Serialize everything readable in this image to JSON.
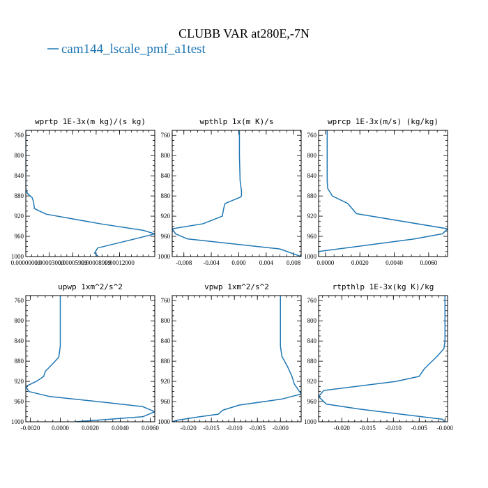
{
  "figure": {
    "title": "CLUBB VAR at280E,-7N",
    "legend": [
      {
        "label": "cam144_lscale_pmf_a1test",
        "color": "#1f77b4"
      }
    ]
  },
  "chart_data": [
    {
      "type": "line",
      "title": "wprtp  1E-3x(m kg)/(s kg)",
      "ylim": [
        1000,
        750
      ],
      "yticks": [
        760,
        800,
        840,
        880,
        920,
        960,
        1000
      ],
      "xlim": [
        0,
        0.000165
      ],
      "xticks": [
        0,
        3e-05,
        6e-05,
        9e-05,
        0.00012
      ],
      "xticklabels": [
        "0.00000000",
        "0.00003000",
        "0.00005999",
        "0.00008999",
        "0.00012000"
      ],
      "series": [
        {
          "color": "#1f77b4",
          "x": [
            0,
            0,
            0,
            2e-06,
            8e-06,
            1e-05,
            1.1e-05,
            2.6e-05,
            9.5e-05,
            0.00015,
            0.000165,
            0.000145,
            9.2e-05,
            8.8e-05,
            9.3e-05
          ],
          "y": [
            750,
            830,
            865,
            875,
            883,
            892,
            905,
            916,
            935,
            948,
            955,
            963,
            983,
            993,
            1000
          ]
        }
      ]
    },
    {
      "type": "line",
      "title": "wpthlp  1x(m K)/s",
      "ylim": [
        1000,
        750
      ],
      "yticks": [
        760,
        800,
        840,
        880,
        920,
        960,
        1000
      ],
      "xlim": [
        -0.0097,
        0.0091
      ],
      "xticks": [
        -0.008,
        -0.004,
        0,
        0.004,
        0.008
      ],
      "xticklabels": [
        "-0.008",
        "-0.004",
        "0.000",
        "0.004",
        "0.008"
      ],
      "series": [
        {
          "color": "#1f77b4",
          "x": [
            0.0001,
            0.0001,
            0.0002,
            0.0004,
            0.0004,
            0.0003,
            -0.002,
            -0.0022,
            -0.0024,
            -0.0052,
            -0.0097,
            -0.0092,
            -0.0075,
            0.006,
            0.0091
          ],
          "y": [
            750,
            800,
            850,
            870,
            880,
            882,
            895,
            905,
            920,
            935,
            945,
            955,
            965,
            985,
            1000
          ]
        }
      ]
    },
    {
      "type": "line",
      "title": "wprcp  1E-3x(m/s) (kg/kg)",
      "ylim": [
        1000,
        750
      ],
      "yticks": [
        760,
        800,
        840,
        880,
        920,
        960,
        1000
      ],
      "xlim": [
        -0.0004,
        0.0071
      ],
      "xticks": [
        0,
        0.002,
        0.004,
        0.006
      ],
      "xticklabels": [
        "0.0000",
        "0.0020",
        "0.0040",
        "0.0060"
      ],
      "series": [
        {
          "color": "#1f77b4",
          "x": [
            0.0001,
            0.0001,
            0.0001,
            0.00013,
            0.0004,
            0.0013,
            0.0018,
            0.0071,
            0.0068,
            0.0052,
            -0.0004,
            -0.0004
          ],
          "y": [
            750,
            800,
            850,
            865,
            880,
            895,
            915,
            945,
            955,
            965,
            990,
            1000
          ]
        }
      ]
    },
    {
      "type": "line",
      "title": "upwp  1xm^2/s^2",
      "ylim": [
        1000,
        750
      ],
      "yticks": [
        760,
        800,
        840,
        880,
        920,
        960,
        1000
      ],
      "xlim": [
        -0.0023,
        0.0063
      ],
      "xticks": [
        -0.002,
        0,
        0.002,
        0.004,
        0.006
      ],
      "xticklabels": [
        "-0.0020",
        "0.0000",
        "0.0020",
        "0.0040",
        "0.0060"
      ],
      "series": [
        {
          "color": "#1f77b4",
          "x": [
            0,
            0,
            0,
            -0.0001,
            -0.0005,
            -0.001,
            -0.0011,
            -0.0016,
            -0.0023,
            -0.0021,
            -0.0007,
            0.0025,
            0.0055,
            0.0063,
            0.0055,
            0.001
          ],
          "y": [
            750,
            800,
            850,
            872,
            885,
            900,
            910,
            920,
            930,
            940,
            950,
            960,
            970,
            980,
            990,
            1000
          ]
        }
      ]
    },
    {
      "type": "line",
      "title": "vpwp  1xm^2/s^2",
      "ylim": [
        1000,
        750
      ],
      "yticks": [
        760,
        800,
        840,
        880,
        920,
        960,
        1000
      ],
      "xlim": [
        -0.0235,
        0.0045
      ],
      "xticks": [
        -0.02,
        -0.015,
        -0.01,
        -0.005,
        0
      ],
      "xticklabels": [
        "-0.020",
        "-0.015",
        "-0.010",
        "-0.005",
        "-0.000"
      ],
      "series": [
        {
          "color": "#1f77b4",
          "x": [
            0,
            0,
            0,
            0.0003,
            0.0015,
            0.0025,
            0.003,
            0.0045,
            0.0003,
            -0.009,
            -0.0125,
            -0.0135,
            -0.0175,
            -0.0225,
            -0.0235
          ],
          "y": [
            750,
            800,
            850,
            870,
            890,
            910,
            925,
            945,
            955,
            967,
            977,
            985,
            990,
            997,
            1000
          ]
        }
      ]
    },
    {
      "type": "line",
      "title": "rtpthlp  1E-3x(kg K)/kg",
      "ylim": [
        1000,
        750
      ],
      "yticks": [
        760,
        800,
        840,
        880,
        920,
        960,
        1000
      ],
      "xlim": [
        -0.0245,
        0.0005
      ],
      "xticks": [
        -0.02,
        -0.015,
        -0.01,
        -0.005,
        0
      ],
      "xticklabels": [
        "-0.020",
        "-0.015",
        "-0.010",
        "-0.005",
        "-0.000"
      ],
      "series": [
        {
          "color": "#1f77b4",
          "x": [
            0,
            0,
            0,
            -0.0002,
            -0.0015,
            -0.0025,
            -0.004,
            -0.005,
            -0.0095,
            -0.0235,
            -0.0245,
            -0.023,
            -0.0165,
            -0.0005,
            0
          ],
          "y": [
            750,
            800,
            840,
            855,
            870,
            880,
            895,
            910,
            920,
            938,
            950,
            965,
            975,
            995,
            1000
          ]
        }
      ]
    }
  ]
}
